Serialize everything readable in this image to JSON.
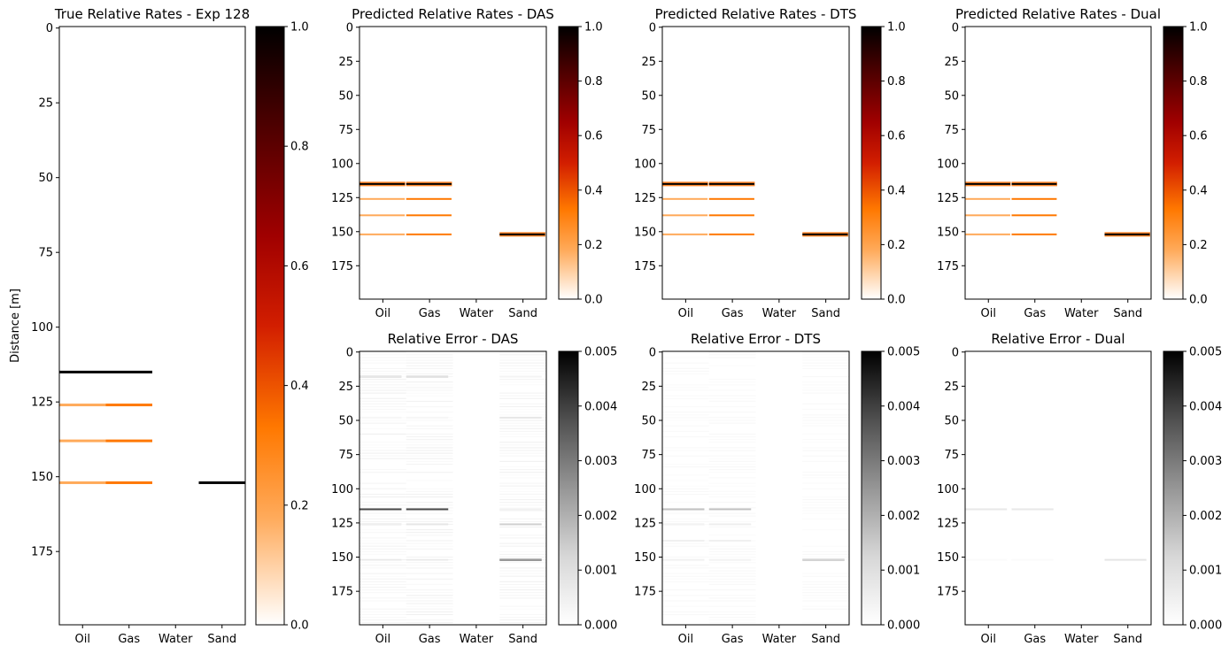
{
  "chart_data": [
    {
      "id": "true-rates",
      "type": "heatmap",
      "title": "True Relative Rates - Exp 128",
      "ylabel": "Distance [m]",
      "categories": [
        "Oil",
        "Gas",
        "Water",
        "Sand"
      ],
      "y_range": [
        0,
        199
      ],
      "y_ticks": [
        0,
        25,
        50,
        75,
        100,
        125,
        150,
        175
      ],
      "colormap": "gist_heat_r",
      "colorbar": {
        "range": [
          0,
          1
        ],
        "ticks": [
          "0.0",
          "0.2",
          "0.4",
          "0.6",
          "0.8",
          "1.0"
        ]
      },
      "bands": [
        {
          "y": 115,
          "values": [
            1.0,
            1.0,
            0,
            0
          ]
        },
        {
          "y": 126,
          "values": [
            0.18,
            0.33,
            0,
            0
          ]
        },
        {
          "y": 138,
          "values": [
            0.18,
            0.33,
            0,
            0
          ]
        },
        {
          "y": 152,
          "values": [
            0.18,
            0.33,
            0,
            1.0
          ]
        }
      ]
    },
    {
      "id": "pred-das",
      "type": "heatmap",
      "title": "Predicted Relative Rates - DAS",
      "categories": [
        "Oil",
        "Gas",
        "Water",
        "Sand"
      ],
      "y_range": [
        0,
        199
      ],
      "y_ticks": [
        0,
        25,
        50,
        75,
        100,
        125,
        150,
        175
      ],
      "colormap": "gist_heat_r",
      "colorbar": {
        "range": [
          0,
          1
        ],
        "ticks": [
          "0.0",
          "0.2",
          "0.4",
          "0.6",
          "0.8",
          "1.0"
        ]
      },
      "bands": [
        {
          "y": 115,
          "values": [
            1.0,
            1.0,
            0,
            0
          ]
        },
        {
          "y": 126,
          "values": [
            0.18,
            0.33,
            0,
            0
          ]
        },
        {
          "y": 138,
          "values": [
            0.18,
            0.33,
            0,
            0
          ]
        },
        {
          "y": 152,
          "values": [
            0.18,
            0.33,
            0,
            1.0
          ]
        }
      ]
    },
    {
      "id": "pred-dts",
      "type": "heatmap",
      "title": "Predicted Relative Rates - DTS",
      "categories": [
        "Oil",
        "Gas",
        "Water",
        "Sand"
      ],
      "y_range": [
        0,
        199
      ],
      "y_ticks": [
        0,
        25,
        50,
        75,
        100,
        125,
        150,
        175
      ],
      "colormap": "gist_heat_r",
      "colorbar": {
        "range": [
          0,
          1
        ],
        "ticks": [
          "0.0",
          "0.2",
          "0.4",
          "0.6",
          "0.8",
          "1.0"
        ]
      },
      "bands": [
        {
          "y": 115,
          "values": [
            1.0,
            1.0,
            0,
            0
          ]
        },
        {
          "y": 126,
          "values": [
            0.18,
            0.33,
            0,
            0
          ]
        },
        {
          "y": 138,
          "values": [
            0.18,
            0.33,
            0,
            0
          ]
        },
        {
          "y": 152,
          "values": [
            0.18,
            0.33,
            0,
            1.0
          ]
        }
      ]
    },
    {
      "id": "pred-dual",
      "type": "heatmap",
      "title": "Predicted Relative Rates - Dual",
      "categories": [
        "Oil",
        "Gas",
        "Water",
        "Sand"
      ],
      "y_range": [
        0,
        199
      ],
      "y_ticks": [
        0,
        25,
        50,
        75,
        100,
        125,
        150,
        175
      ],
      "colormap": "gist_heat_r",
      "colorbar": {
        "range": [
          0,
          1
        ],
        "ticks": [
          "0.0",
          "0.2",
          "0.4",
          "0.6",
          "0.8",
          "1.0"
        ]
      },
      "bands": [
        {
          "y": 115,
          "values": [
            1.0,
            1.0,
            0,
            0
          ]
        },
        {
          "y": 126,
          "values": [
            0.18,
            0.33,
            0,
            0
          ]
        },
        {
          "y": 138,
          "values": [
            0.18,
            0.33,
            0,
            0
          ]
        },
        {
          "y": 152,
          "values": [
            0.18,
            0.33,
            0,
            1.0
          ]
        }
      ]
    },
    {
      "id": "err-das",
      "type": "heatmap",
      "title": "Relative Error - DAS",
      "categories": [
        "Oil",
        "Gas",
        "Water",
        "Sand"
      ],
      "y_range": [
        0,
        199
      ],
      "y_ticks": [
        0,
        25,
        50,
        75,
        100,
        125,
        150,
        175
      ],
      "colormap": "Greys",
      "colorbar": {
        "range": [
          0,
          0.005
        ],
        "ticks": [
          "0.000",
          "0.001",
          "0.002",
          "0.003",
          "0.004",
          "0.005"
        ]
      },
      "bands": [
        {
          "y": 18,
          "values": [
            0.0015,
            0.0015,
            0,
            0.0004
          ]
        },
        {
          "y": 48,
          "values": [
            0.0003,
            0.0003,
            0,
            0.0009
          ]
        },
        {
          "y": 115,
          "values": [
            0.0042,
            0.0042,
            0,
            0.0005
          ]
        },
        {
          "y": 126,
          "values": [
            0.0009,
            0.0009,
            0,
            0.0015
          ]
        },
        {
          "y": 152,
          "values": [
            0.0006,
            0.0006,
            0,
            0.0042
          ]
        }
      ]
    },
    {
      "id": "err-dts",
      "type": "heatmap",
      "title": "Relative Error - DTS",
      "categories": [
        "Oil",
        "Gas",
        "Water",
        "Sand"
      ],
      "y_range": [
        0,
        199
      ],
      "y_ticks": [
        0,
        25,
        50,
        75,
        100,
        125,
        150,
        175
      ],
      "colormap": "Greys",
      "colorbar": {
        "range": [
          0,
          0.005
        ],
        "ticks": [
          "0.000",
          "0.001",
          "0.002",
          "0.003",
          "0.004",
          "0.005"
        ]
      },
      "bands": [
        {
          "y": 115,
          "values": [
            0.0018,
            0.0018,
            0,
            0
          ]
        },
        {
          "y": 126,
          "values": [
            0.0006,
            0.0006,
            0,
            0
          ]
        },
        {
          "y": 138,
          "values": [
            0.0006,
            0.0006,
            0,
            0
          ]
        },
        {
          "y": 152,
          "values": [
            0.0005,
            0.0005,
            0,
            0.0022
          ]
        }
      ]
    },
    {
      "id": "err-dual",
      "type": "heatmap",
      "title": "Relative Error - Dual",
      "categories": [
        "Oil",
        "Gas",
        "Water",
        "Sand"
      ],
      "y_range": [
        0,
        199
      ],
      "y_ticks": [
        0,
        25,
        50,
        75,
        100,
        125,
        150,
        175
      ],
      "colormap": "Greys",
      "colorbar": {
        "range": [
          0,
          0.005
        ],
        "ticks": [
          "0.000",
          "0.001",
          "0.002",
          "0.003",
          "0.004",
          "0.005"
        ]
      },
      "bands": [
        {
          "y": 115,
          "values": [
            0.0008,
            0.0008,
            0,
            0
          ]
        },
        {
          "y": 152,
          "values": [
            0.0002,
            0.0002,
            0,
            0.0009
          ]
        }
      ]
    }
  ]
}
